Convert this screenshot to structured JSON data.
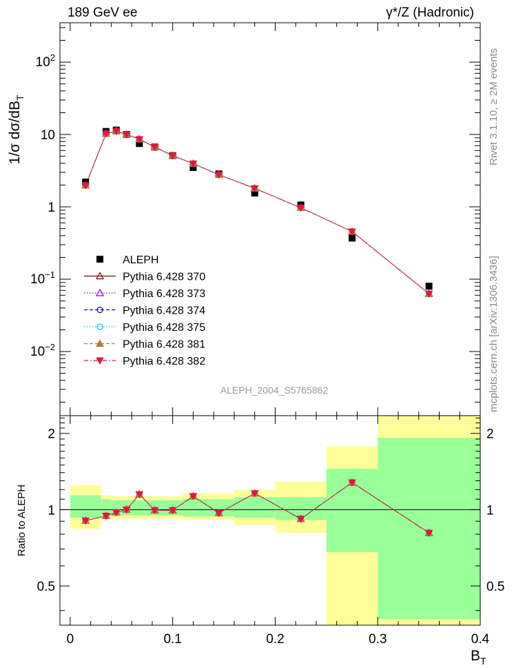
{
  "header": {
    "left": "189 GeV ee",
    "right": "γ*/Z (Hadronic)"
  },
  "side_labels": {
    "rivet": "Rivet 3.1.10, ≥ 2M events",
    "mcplots": "mcplots.cern.ch [arXiv:1306.3436]"
  },
  "watermark": "ALEPH_2004_S5765862",
  "axes": {
    "top_ylabel": "1/σ dσ/dB",
    "top_ylabel_sub": "T",
    "bottom_ylabel": "Ratio to ALEPH",
    "xlabel": "B",
    "xlabel_sub": "T",
    "x_ticks": [
      "0",
      "0.1",
      "0.2",
      "0.3",
      "0.4"
    ],
    "ratio_ticks": [
      "0.5",
      "1",
      "2"
    ]
  },
  "colors": {
    "data": "#000000",
    "band_inner": "#99ff99",
    "band_outer": "#ffff99"
  },
  "chart_data": {
    "type": "scatter",
    "xlim": [
      -0.01,
      0.4
    ],
    "ylim_top": [
      0.0013,
      350
    ],
    "ylim_ratio": [
      0.35,
      2.35
    ],
    "top_yscale": "log",
    "ratio_yscale": "log",
    "legend_position": "lower-left",
    "x_edges": [
      0.0,
      0.03,
      0.04,
      0.05,
      0.06,
      0.075,
      0.09,
      0.11,
      0.13,
      0.16,
      0.2,
      0.25,
      0.3,
      0.4
    ],
    "data": {
      "name": "ALEPH",
      "x": [
        0.015,
        0.035,
        0.045,
        0.055,
        0.0675,
        0.0825,
        0.1,
        0.12,
        0.145,
        0.18,
        0.225,
        0.275,
        0.35
      ],
      "y": [
        2.2,
        11.0,
        11.5,
        10.0,
        7.5,
        6.7,
        5.1,
        3.5,
        2.85,
        1.55,
        1.06,
        0.37,
        0.08
      ],
      "ratio_band_inner_lo": [
        0.93,
        0.95,
        0.95,
        0.95,
        0.95,
        0.95,
        0.95,
        0.94,
        0.94,
        0.93,
        0.91,
        0.68,
        0.37
      ],
      "ratio_band_inner_hi": [
        1.14,
        1.1,
        1.09,
        1.09,
        1.09,
        1.09,
        1.09,
        1.1,
        1.1,
        1.12,
        1.12,
        1.45,
        1.92
      ],
      "ratio_band_outer_lo": [
        0.84,
        0.92,
        0.92,
        0.92,
        0.92,
        0.92,
        0.92,
        0.91,
        0.91,
        0.87,
        0.81,
        0.35,
        0.35
      ],
      "ratio_band_outer_hi": [
        1.25,
        1.14,
        1.13,
        1.13,
        1.13,
        1.13,
        1.13,
        1.16,
        1.16,
        1.2,
        1.29,
        1.78,
        2.35
      ]
    },
    "mc_x": [
      0.015,
      0.035,
      0.045,
      0.055,
      0.0675,
      0.0825,
      0.1,
      0.12,
      0.145,
      0.18,
      0.225,
      0.275,
      0.35
    ],
    "mc_y": [
      1.98,
      10.3,
      11.1,
      10.0,
      8.6,
      6.7,
      5.1,
      3.95,
      2.78,
      1.8,
      0.97,
      0.455,
      0.063
    ],
    "mc_ratio": [
      0.905,
      0.945,
      0.975,
      1.0,
      1.15,
      0.995,
      0.995,
      1.13,
      0.97,
      1.16,
      0.92,
      1.28,
      0.81
    ],
    "series": [
      {
        "name": "Pythia 6.428 370",
        "color": "#800000",
        "marker": "triangle-open",
        "dash": "solid"
      },
      {
        "name": "Pythia 6.428 373",
        "color": "#8b00c8",
        "marker": "triangle-open",
        "dash": "dotted"
      },
      {
        "name": "Pythia 6.428 374",
        "color": "#0000ff",
        "marker": "circle-open",
        "dash": "dashed"
      },
      {
        "name": "Pythia 6.428 375",
        "color": "#00ccdd",
        "marker": "circle-open",
        "dash": "dotted"
      },
      {
        "name": "Pythia 6.428 381",
        "color": "#b07a3c",
        "marker": "triangle-filled",
        "dash": "dashed"
      },
      {
        "name": "Pythia 6.428 382",
        "color": "#e8143c",
        "marker": "triangle-down-filled",
        "dash": "dashdot"
      }
    ]
  }
}
